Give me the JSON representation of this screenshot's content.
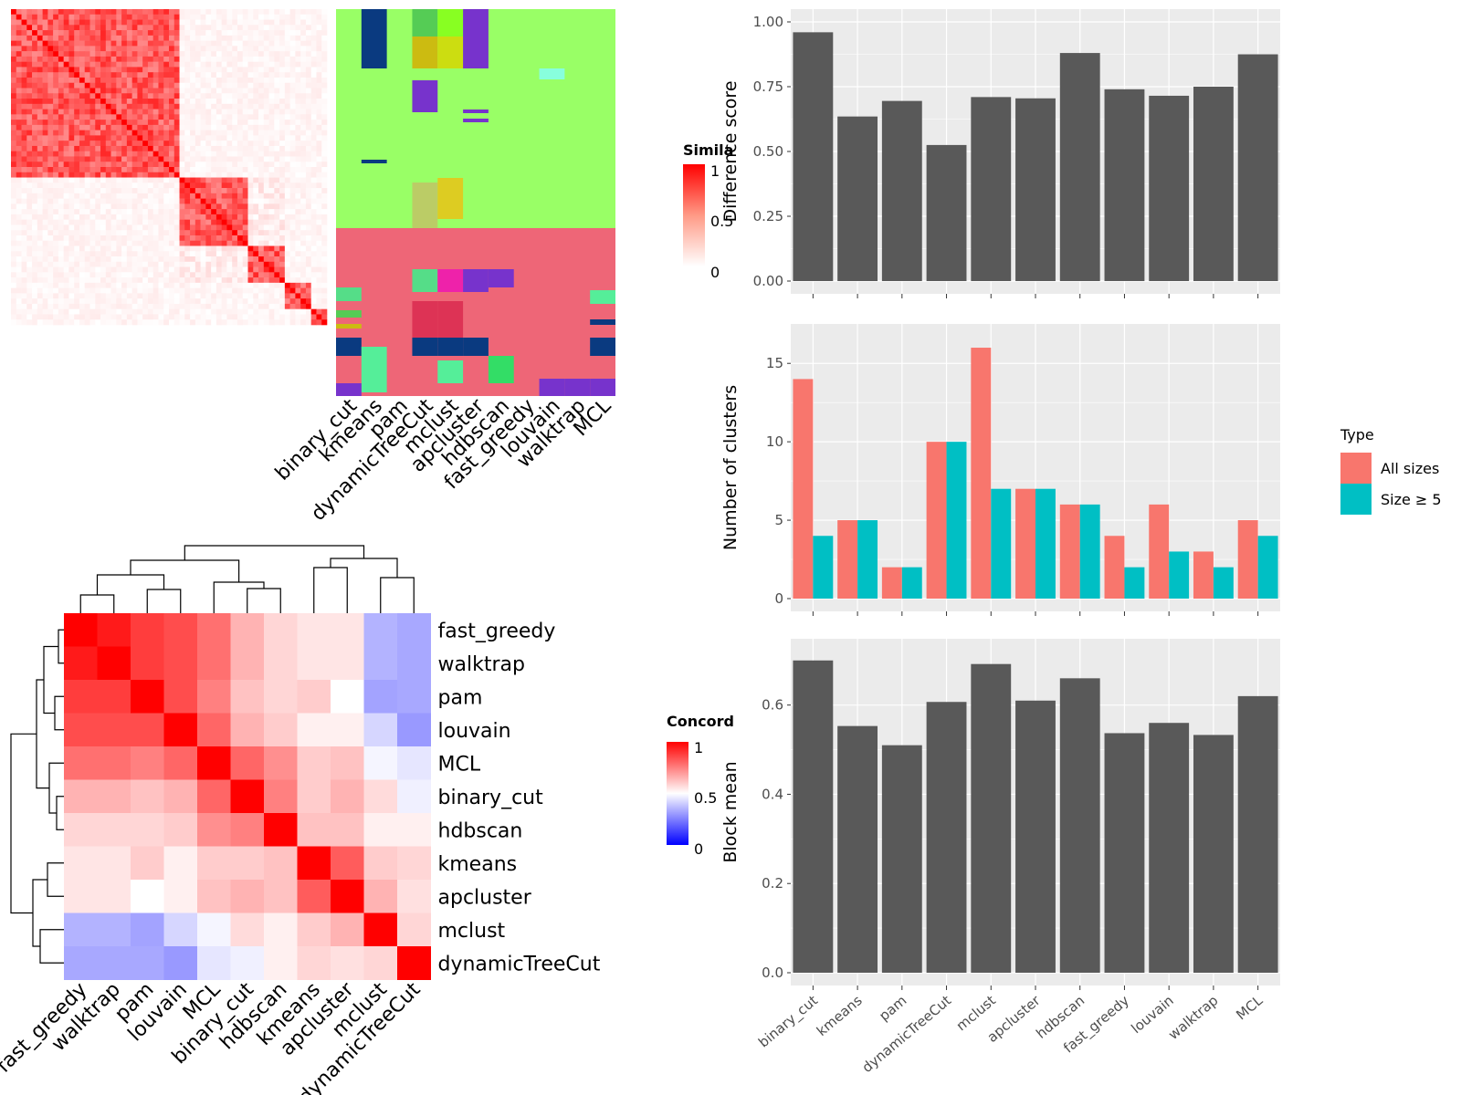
{
  "methods": [
    "binary_cut",
    "kmeans",
    "pam",
    "dynamicTreeCut",
    "mclust",
    "apcluster",
    "hdbscan",
    "fast_greedy",
    "louvain",
    "walktrap",
    "MCL"
  ],
  "legends": {
    "similarity": {
      "title": "Simila",
      "labels": [
        "1",
        "0.5",
        "0"
      ]
    },
    "concordance": {
      "title": "Concord",
      "labels": [
        "1",
        "0.5",
        "0"
      ]
    },
    "type": {
      "title": "Type",
      "items": [
        "All sizes",
        "Size ≥ 5"
      ]
    }
  },
  "colors": {
    "all_sizes": "#F8766D",
    "size_ge5": "#00BFC4",
    "bar": "#595959",
    "panel": "#EBEBEB"
  },
  "chart_data": [
    {
      "type": "bar",
      "categories": [
        "binary_cut",
        "kmeans",
        "pam",
        "dynamicTreeCut",
        "mclust",
        "apcluster",
        "hdbscan",
        "fast_greedy",
        "louvain",
        "walktrap",
        "MCL"
      ],
      "values": [
        0.96,
        0.635,
        0.695,
        0.525,
        0.71,
        0.705,
        0.88,
        0.74,
        0.715,
        0.75,
        0.875
      ],
      "ylabel": "Difference score",
      "ylim": [
        0,
        1.0
      ],
      "yticks": [
        "0.00",
        "0.25",
        "0.50",
        "0.75",
        "1.00"
      ]
    },
    {
      "type": "bar",
      "categories": [
        "binary_cut",
        "kmeans",
        "pam",
        "dynamicTreeCut",
        "mclust",
        "apcluster",
        "hdbscan",
        "fast_greedy",
        "louvain",
        "walktrap",
        "MCL"
      ],
      "series": [
        {
          "name": "All sizes",
          "values": [
            14,
            5,
            2,
            10,
            16,
            7,
            6,
            4,
            6,
            3,
            5
          ]
        },
        {
          "name": "Size ≥ 5",
          "values": [
            4,
            5,
            2,
            10,
            7,
            7,
            6,
            2,
            3,
            2,
            4
          ]
        }
      ],
      "ylabel": "Number of clusters",
      "ylim": [
        0,
        16.7
      ],
      "yticks": [
        "0",
        "5",
        "10",
        "15"
      ]
    },
    {
      "type": "bar",
      "categories": [
        "binary_cut",
        "kmeans",
        "pam",
        "dynamicTreeCut",
        "mclust",
        "apcluster",
        "hdbscan",
        "fast_greedy",
        "louvain",
        "walktrap",
        "MCL"
      ],
      "values": [
        0.7,
        0.553,
        0.51,
        0.607,
        0.692,
        0.61,
        0.66,
        0.537,
        0.56,
        0.533,
        0.62
      ],
      "ylabel": "Block mean",
      "ylim": [
        0,
        0.72
      ],
      "yticks": [
        "0.0",
        "0.2",
        "0.4",
        "0.6"
      ]
    },
    {
      "type": "heatmap",
      "row_labels": [
        "fast_greedy",
        "walktrap",
        "pam",
        "louvain",
        "MCL",
        "binary_cut",
        "hdbscan",
        "kmeans",
        "apcluster",
        "mclust",
        "dynamicTreeCut"
      ],
      "col_labels": [
        "fast_greedy",
        "walktrap",
        "pam",
        "louvain",
        "MCL",
        "binary_cut",
        "hdbscan",
        "kmeans",
        "apcluster",
        "mclust",
        "dynamicTreeCut"
      ],
      "values": [
        [
          1.0,
          0.95,
          0.88,
          0.85,
          0.78,
          0.65,
          0.58,
          0.55,
          0.55,
          0.35,
          0.33
        ],
        [
          0.95,
          1.0,
          0.88,
          0.85,
          0.78,
          0.65,
          0.58,
          0.55,
          0.55,
          0.35,
          0.33
        ],
        [
          0.88,
          0.88,
          1.0,
          0.85,
          0.75,
          0.62,
          0.58,
          0.6,
          0.5,
          0.32,
          0.33
        ],
        [
          0.85,
          0.85,
          0.85,
          1.0,
          0.8,
          0.65,
          0.6,
          0.53,
          0.53,
          0.42,
          0.3
        ],
        [
          0.78,
          0.78,
          0.75,
          0.8,
          1.0,
          0.8,
          0.72,
          0.6,
          0.62,
          0.48,
          0.45
        ],
        [
          0.65,
          0.65,
          0.62,
          0.65,
          0.8,
          1.0,
          0.75,
          0.6,
          0.65,
          0.57,
          0.47
        ],
        [
          0.58,
          0.58,
          0.58,
          0.6,
          0.72,
          0.75,
          1.0,
          0.62,
          0.62,
          0.53,
          0.53
        ],
        [
          0.55,
          0.55,
          0.6,
          0.53,
          0.6,
          0.6,
          0.62,
          1.0,
          0.82,
          0.6,
          0.58
        ],
        [
          0.55,
          0.55,
          0.5,
          0.53,
          0.62,
          0.65,
          0.62,
          0.82,
          1.0,
          0.65,
          0.56
        ],
        [
          0.35,
          0.35,
          0.32,
          0.42,
          0.48,
          0.57,
          0.53,
          0.6,
          0.65,
          1.0,
          0.58
        ],
        [
          0.33,
          0.33,
          0.33,
          0.3,
          0.45,
          0.47,
          0.53,
          0.58,
          0.56,
          0.58,
          1.0
        ]
      ],
      "scale": [
        0,
        1
      ]
    }
  ]
}
